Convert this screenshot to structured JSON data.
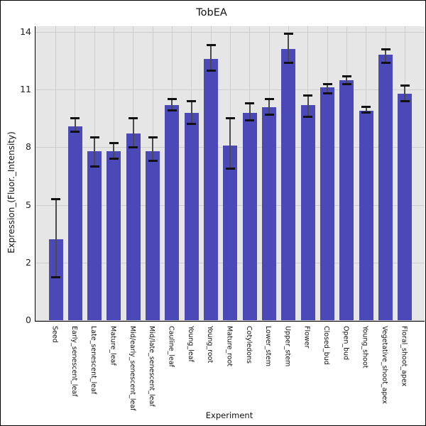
{
  "figure": {
    "background": "#ffffff",
    "border_color": "#000000"
  },
  "chart_data": {
    "type": "bar",
    "title": "TobEA",
    "xlabel": "Experiment",
    "ylabel": "Expression_(Fluor._Intensity)",
    "y_ticks": [
      0,
      2,
      5,
      8,
      11,
      14
    ],
    "axis_note": "y tick labels 0,2,5,8,11,14 are equally spaced on screen (non-linear value axis); values interpolate piecewise between adjacent ticks",
    "grid": true,
    "legend_position": "none",
    "categories": [
      "Seed",
      "Early_senescent_leaf",
      "Late_senescent_leaf",
      "Mature_leaf",
      "Mid/early_senescent_leaf",
      "Mid/late_senescent_leaf",
      "Cauline_leaf",
      "Young_leaf",
      "Young_root",
      "Mature_root",
      "Cotyledons",
      "Lower_stem",
      "Upper_stem",
      "Flower",
      "Closed_bud",
      "Open_bud",
      "Young_shoot",
      "Vegetative_shoot_apex",
      "Floral_shoot_apex"
    ],
    "values": [
      3.2,
      9.1,
      7.8,
      7.8,
      8.7,
      7.8,
      10.2,
      9.8,
      12.6,
      8.1,
      9.8,
      10.1,
      13.1,
      10.2,
      11.1,
      11.5,
      9.9,
      12.8,
      10.8
    ],
    "error_low": [
      1.5,
      8.8,
      7.0,
      7.4,
      8.0,
      7.3,
      9.9,
      9.2,
      12.0,
      6.9,
      9.4,
      9.7,
      12.4,
      9.6,
      10.8,
      11.3,
      9.8,
      12.4,
      10.4
    ],
    "error_high": [
      5.3,
      9.5,
      8.5,
      8.2,
      9.5,
      8.5,
      10.5,
      10.4,
      13.3,
      9.5,
      10.3,
      10.5,
      13.9,
      10.7,
      11.3,
      11.7,
      10.1,
      13.1,
      11.2
    ],
    "colors": {
      "bar": "#4b48b7",
      "plot_background": "#e6e6e6",
      "grid": "#cdcdcd",
      "error_bar": "#111111",
      "axis": "#000000",
      "text": "#111111"
    }
  }
}
